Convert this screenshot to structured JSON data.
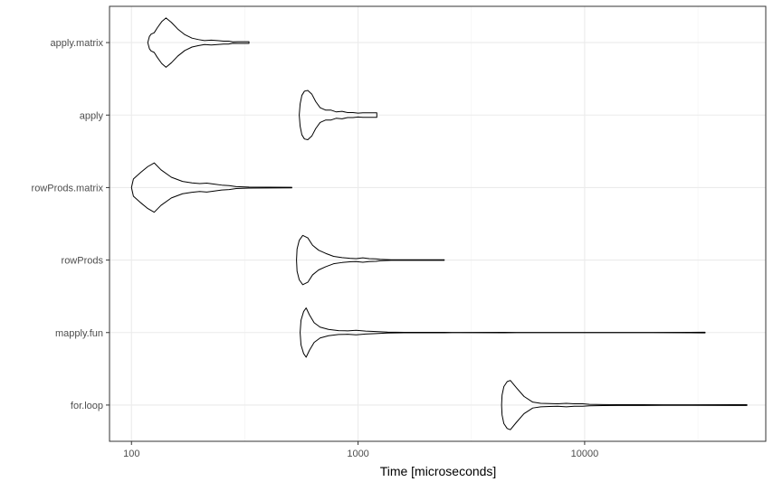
{
  "chart_data": {
    "type": "violin",
    "orientation": "horizontal",
    "xlabel": "Time [microseconds]",
    "ylabel": "",
    "x_scale": "log10",
    "xlim": [
      80,
      63000
    ],
    "x_ticks": [
      100,
      1000,
      10000
    ],
    "x_tick_labels": [
      "100",
      "1000",
      "10000"
    ],
    "grid": true,
    "theme": "bw",
    "categories": [
      "apply.matrix",
      "apply",
      "rowProds.matrix",
      "rowProds",
      "mapply.fun",
      "for.loop"
    ],
    "series": [
      {
        "name": "apply.matrix",
        "min": 118,
        "max": 330,
        "profile": [
          [
            118,
            0.0
          ],
          [
            120,
            0.25
          ],
          [
            122,
            0.34
          ],
          [
            126,
            0.4
          ],
          [
            130,
            0.6
          ],
          [
            136,
            0.85
          ],
          [
            142,
            1.0
          ],
          [
            150,
            0.82
          ],
          [
            160,
            0.55
          ],
          [
            172,
            0.32
          ],
          [
            185,
            0.18
          ],
          [
            198,
            0.12
          ],
          [
            210,
            0.08
          ],
          [
            225,
            0.1
          ],
          [
            240,
            0.08
          ],
          [
            255,
            0.06
          ],
          [
            268,
            0.06
          ],
          [
            280,
            0.03
          ],
          [
            295,
            0.035
          ],
          [
            330,
            0.035
          ]
        ]
      },
      {
        "name": "apply",
        "min": 550,
        "max": 1210,
        "profile": [
          [
            550,
            0.0
          ],
          [
            555,
            0.45
          ],
          [
            565,
            0.8
          ],
          [
            580,
            0.97
          ],
          [
            600,
            1.0
          ],
          [
            625,
            0.85
          ],
          [
            650,
            0.55
          ],
          [
            680,
            0.3
          ],
          [
            720,
            0.2
          ],
          [
            760,
            0.2
          ],
          [
            800,
            0.13
          ],
          [
            850,
            0.15
          ],
          [
            900,
            0.1
          ],
          [
            950,
            0.1
          ],
          [
            1000,
            0.08
          ],
          [
            1050,
            0.09
          ],
          [
            1100,
            0.09
          ],
          [
            1150,
            0.09
          ],
          [
            1210,
            0.09
          ]
        ]
      },
      {
        "name": "rowProds.matrix",
        "min": 100,
        "max": 510,
        "profile": [
          [
            100,
            0.0
          ],
          [
            102,
            0.35
          ],
          [
            110,
            0.62
          ],
          [
            118,
            0.85
          ],
          [
            126,
            1.0
          ],
          [
            135,
            0.72
          ],
          [
            150,
            0.42
          ],
          [
            168,
            0.25
          ],
          [
            185,
            0.19
          ],
          [
            200,
            0.16
          ],
          [
            215,
            0.18
          ],
          [
            232,
            0.14
          ],
          [
            250,
            0.1
          ],
          [
            270,
            0.08
          ],
          [
            290,
            0.04
          ],
          [
            330,
            0.02
          ],
          [
            400,
            0.015
          ],
          [
            510,
            0.01
          ]
        ]
      },
      {
        "name": "rowProds",
        "min": 535,
        "max": 2400,
        "profile": [
          [
            535,
            0.0
          ],
          [
            538,
            0.45
          ],
          [
            550,
            0.8
          ],
          [
            570,
            1.0
          ],
          [
            600,
            0.9
          ],
          [
            630,
            0.6
          ],
          [
            670,
            0.4
          ],
          [
            720,
            0.27
          ],
          [
            780,
            0.15
          ],
          [
            850,
            0.1
          ],
          [
            920,
            0.07
          ],
          [
            980,
            0.06
          ],
          [
            1050,
            0.09
          ],
          [
            1120,
            0.06
          ],
          [
            1200,
            0.05
          ],
          [
            1250,
            0.03
          ],
          [
            1400,
            0.01
          ],
          [
            2000,
            0.01
          ],
          [
            2400,
            0.01
          ]
        ]
      },
      {
        "name": "mapply.fun",
        "min": 555,
        "max": 34000,
        "profile": [
          [
            555,
            0.0
          ],
          [
            560,
            0.5
          ],
          [
            575,
            0.85
          ],
          [
            590,
            1.0
          ],
          [
            610,
            0.72
          ],
          [
            640,
            0.4
          ],
          [
            680,
            0.22
          ],
          [
            740,
            0.13
          ],
          [
            820,
            0.08
          ],
          [
            900,
            0.07
          ],
          [
            980,
            0.09
          ],
          [
            1080,
            0.06
          ],
          [
            1200,
            0.04
          ],
          [
            1350,
            0.02
          ],
          [
            1600,
            0.01
          ],
          [
            2400,
            0.01
          ],
          [
            2600,
            0.005
          ],
          [
            4400,
            0.008
          ],
          [
            5000,
            0.005
          ],
          [
            20000,
            0.005
          ],
          [
            33000,
            0.012
          ],
          [
            34000,
            0.012
          ]
        ]
      },
      {
        "name": "for.loop",
        "min": 4300,
        "max": 52000,
        "profile": [
          [
            4300,
            0.0
          ],
          [
            4320,
            0.4
          ],
          [
            4400,
            0.75
          ],
          [
            4550,
            0.95
          ],
          [
            4700,
            1.0
          ],
          [
            5000,
            0.7
          ],
          [
            5400,
            0.35
          ],
          [
            5900,
            0.12
          ],
          [
            6400,
            0.07
          ],
          [
            7000,
            0.06
          ],
          [
            7600,
            0.05
          ],
          [
            8300,
            0.07
          ],
          [
            9000,
            0.05
          ],
          [
            9800,
            0.05
          ],
          [
            10500,
            0.03
          ],
          [
            12000,
            0.02
          ],
          [
            14000,
            0.015
          ],
          [
            18000,
            0.015
          ],
          [
            22000,
            0.012
          ],
          [
            30000,
            0.01
          ],
          [
            46000,
            0.015
          ],
          [
            52000,
            0.015
          ]
        ]
      }
    ]
  }
}
